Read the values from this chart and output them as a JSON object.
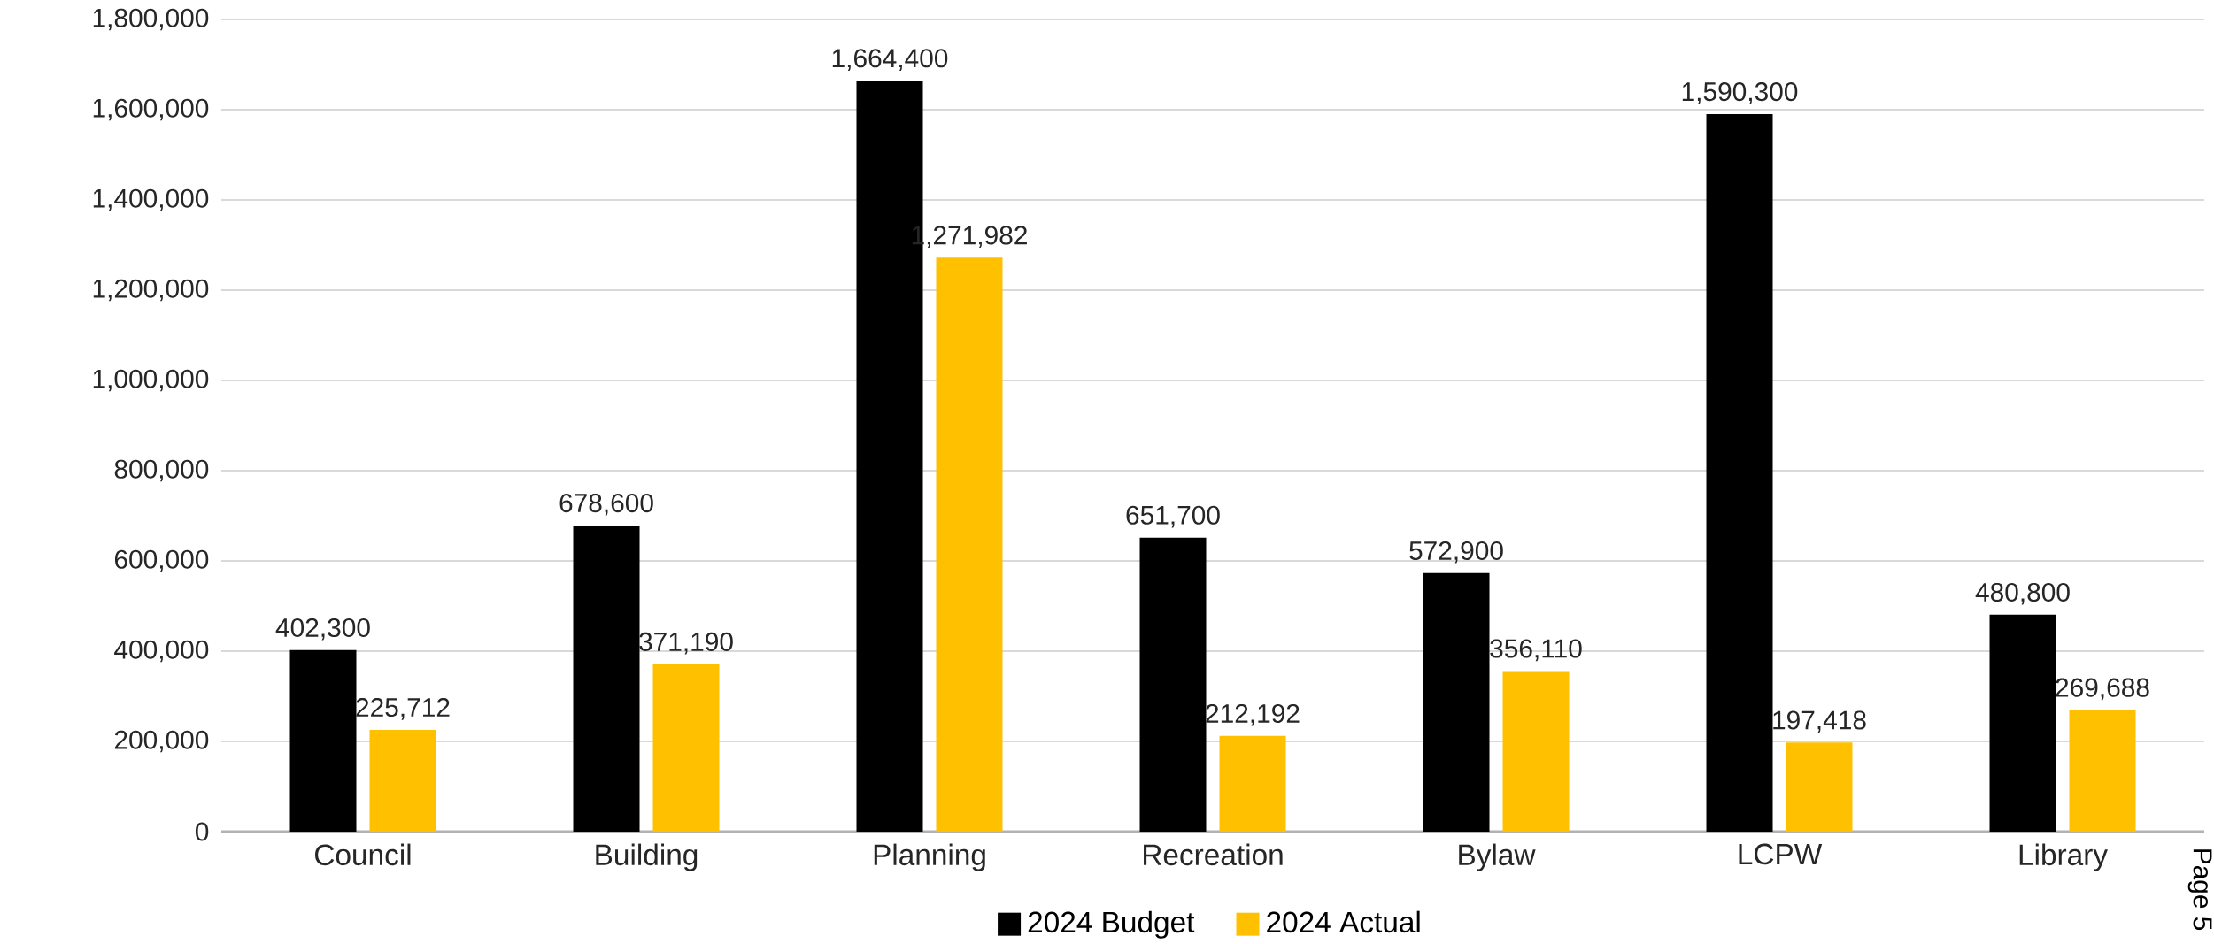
{
  "chart_data": {
    "type": "bar",
    "categories": [
      "Council",
      "Building",
      "Planning",
      "Recreation",
      "Bylaw",
      "LCPW",
      "Library"
    ],
    "series": [
      {
        "name": "2024 Budget",
        "color": "#000000",
        "values": [
          402300,
          678600,
          1664400,
          651700,
          572900,
          1590300,
          480800
        ],
        "value_labels": [
          "402,300",
          "678,600",
          "1,664,400",
          "651,700",
          "572,900",
          "1,590,300",
          "480,800"
        ]
      },
      {
        "name": "2024 Actual",
        "color": "#ffc000",
        "values": [
          225712,
          371190,
          1271982,
          212192,
          356110,
          197418,
          269688
        ],
        "value_labels": [
          "225,712",
          "371,190",
          "1,271,982",
          "212,192",
          "356,110",
          "197,418",
          "269,688"
        ]
      }
    ],
    "ylim": [
      0,
      1800000
    ],
    "yticks": [
      {
        "value": 0,
        "label": "0"
      },
      {
        "value": 200000,
        "label": "200,000"
      },
      {
        "value": 400000,
        "label": "400,000"
      },
      {
        "value": 600000,
        "label": "600,000"
      },
      {
        "value": 800000,
        "label": "800,000"
      },
      {
        "value": 1000000,
        "label": "1,000,000"
      },
      {
        "value": 1200000,
        "label": "1,200,000"
      },
      {
        "value": 1400000,
        "label": "1,400,000"
      },
      {
        "value": 1600000,
        "label": "1,600,000"
      },
      {
        "value": 1800000,
        "label": "1,800,000"
      }
    ],
    "grid": "y",
    "legend": "bottom",
    "annotations": [
      "Page 5"
    ]
  }
}
